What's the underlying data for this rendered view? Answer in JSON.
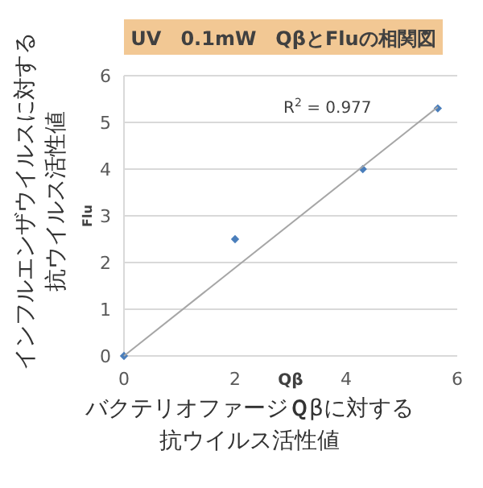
{
  "chart_data": {
    "type": "scatter",
    "title": "UV　0.1mW　QβとFluの相関図",
    "xlabel": "Qβ",
    "ylabel": "Flu",
    "series": [
      {
        "type": "scatter",
        "color": "#4a7ebb",
        "x": [
          0,
          2.0,
          4.3,
          5.65
        ],
        "values": [
          0,
          2.5,
          4.0,
          5.3
        ],
        "marker": "diamond"
      },
      {
        "type": "line",
        "color": "#a6a6a6",
        "x": [
          0,
          5.65
        ],
        "values": [
          0,
          5.33
        ],
        "marker": "none"
      }
    ],
    "xlim": [
      0,
      6
    ],
    "ylim": [
      0,
      6
    ],
    "xticks": [
      0,
      2,
      4,
      6
    ],
    "yticks": [
      0,
      1,
      2,
      3,
      4,
      5,
      6
    ],
    "grid": "y",
    "annotations": [
      "R$^{2}$ = 0.977",
      "バクテリオファージ**Ｑ**βに対する抗ウイルス活性値",
      "インフルエンザウイルスに対する抗ウイルス活性値"
    ]
  }
}
